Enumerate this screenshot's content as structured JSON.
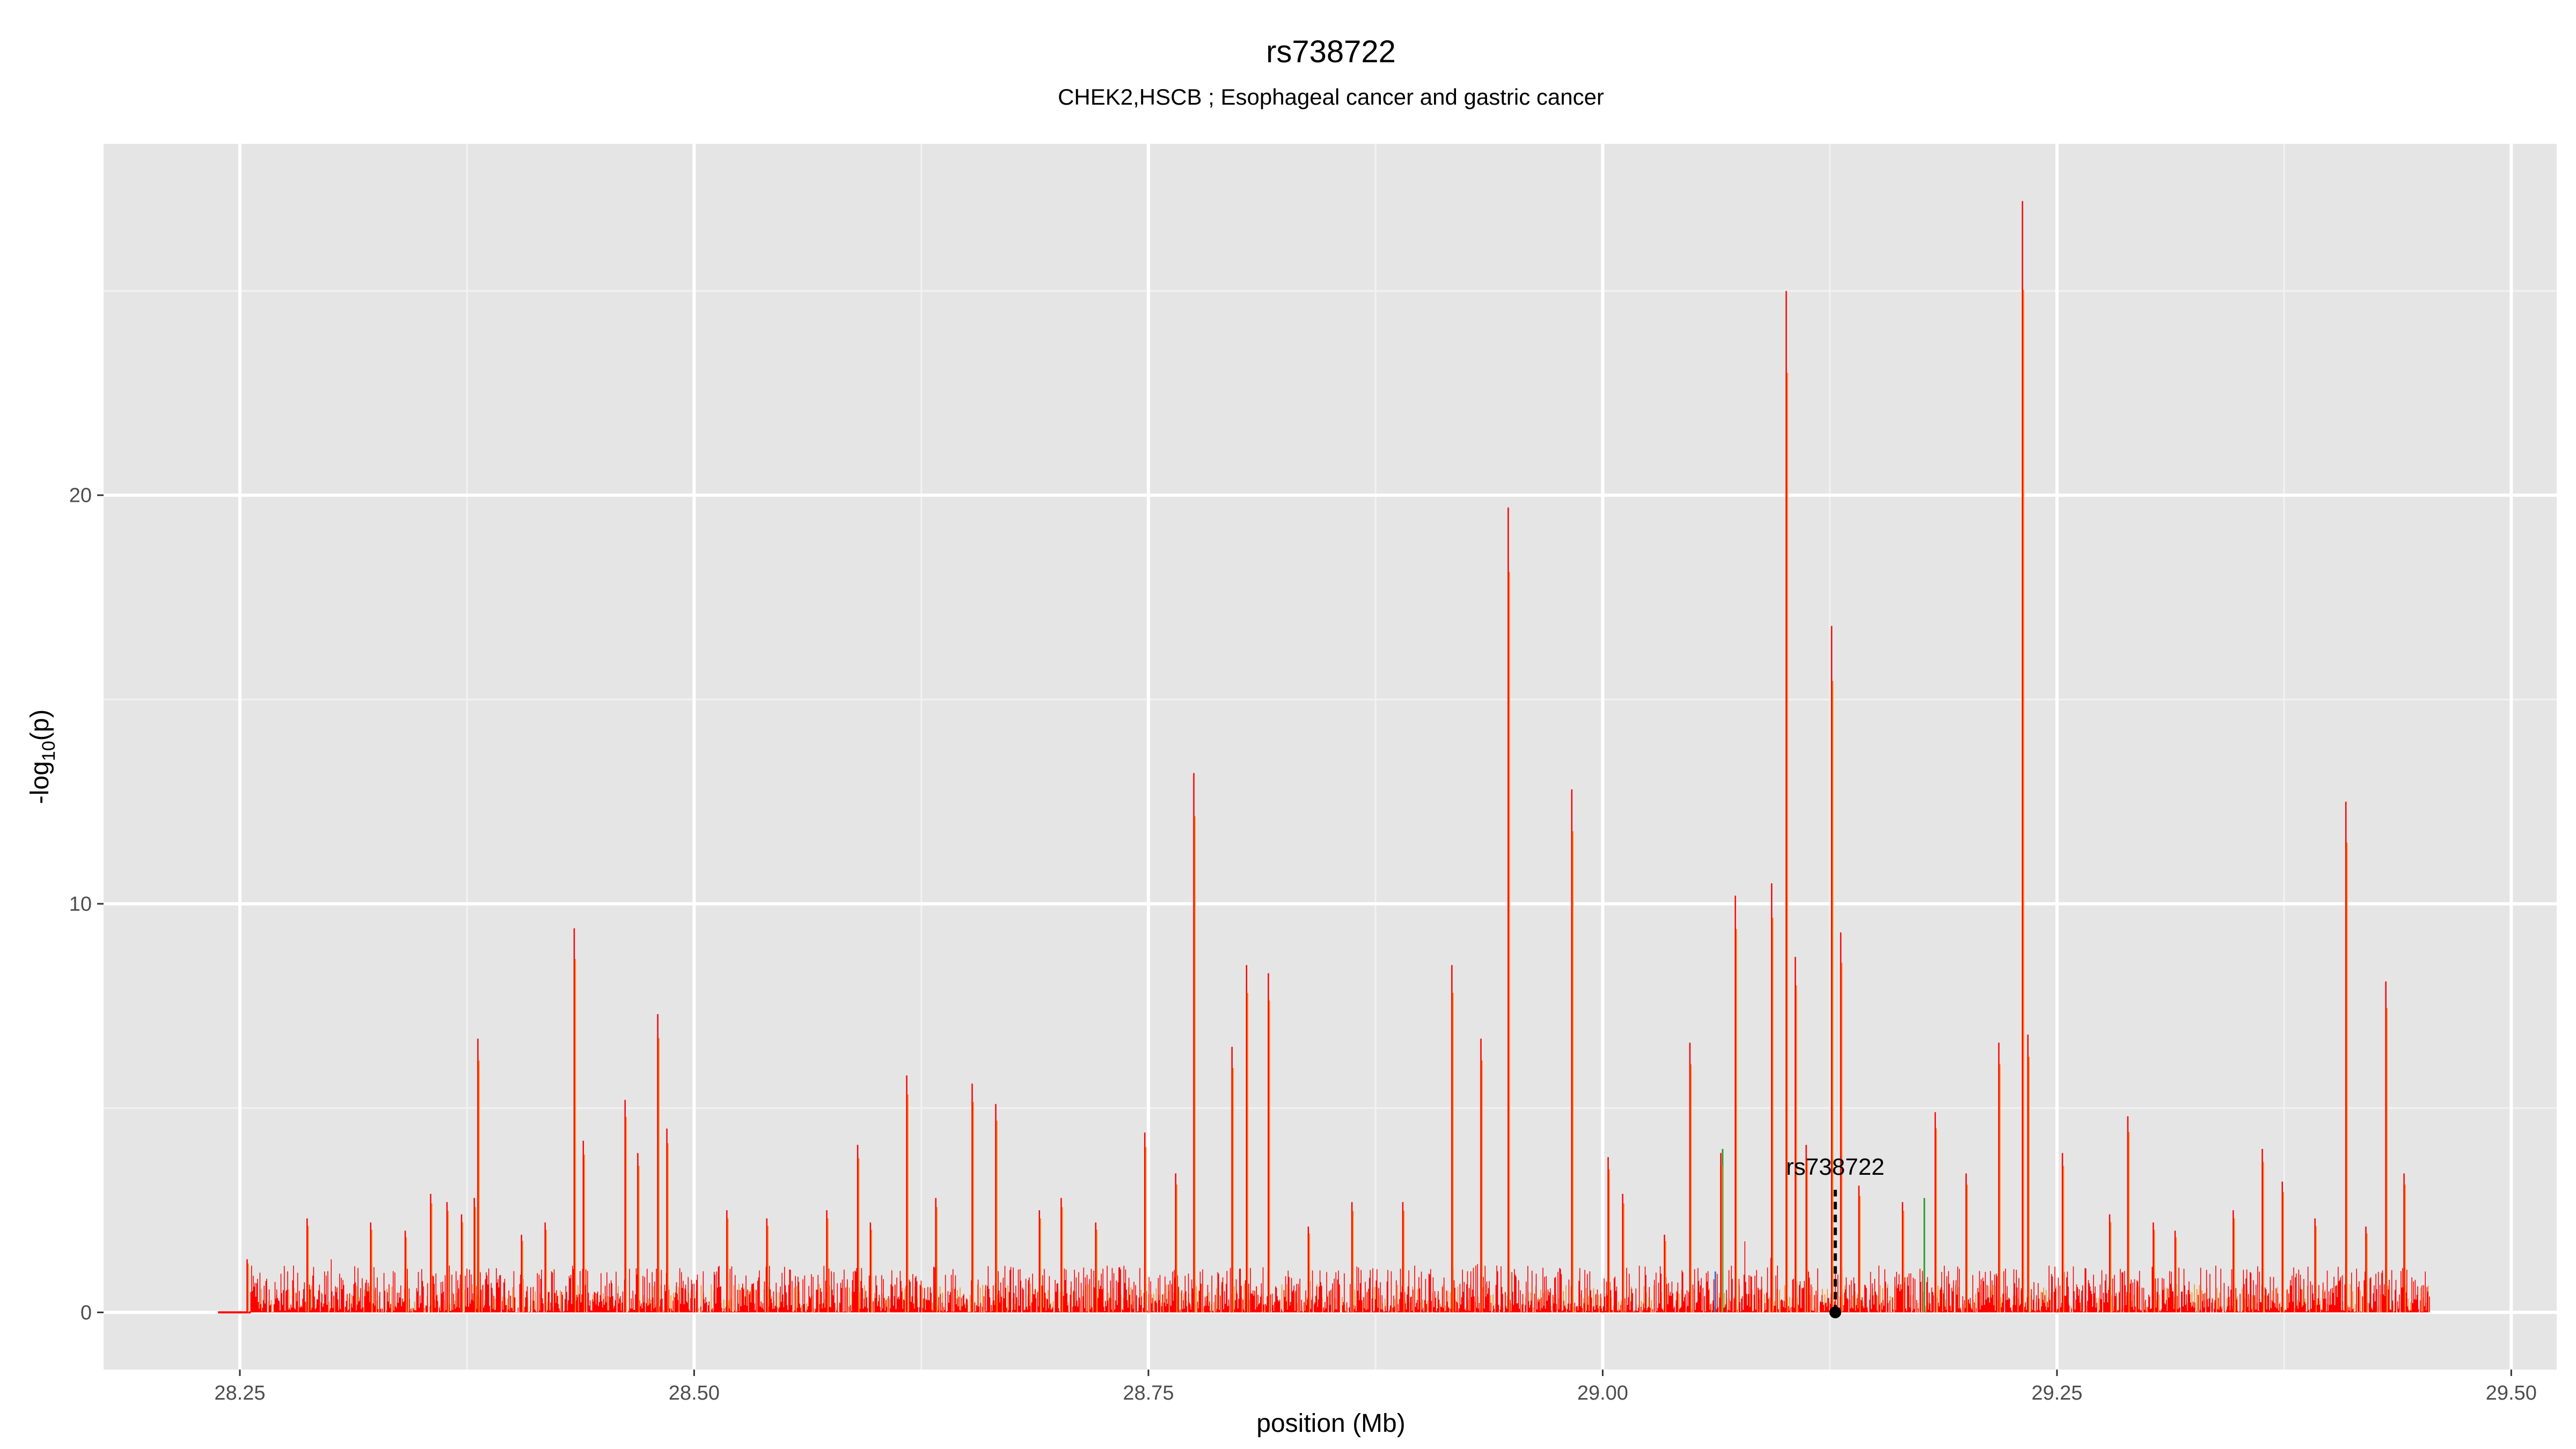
{
  "chart_data": {
    "type": "area",
    "title": "rs738722",
    "subtitle": "CHEK2,HSCB ; Esophageal cancer and gastric cancer",
    "xlabel": "position (Mb)",
    "ylabel": "-log10(p)",
    "xlim": [
      28.175,
      29.525
    ],
    "ylim": [
      -1.4,
      28.6
    ],
    "x_ticks": [
      28.25,
      28.5,
      28.75,
      29.0,
      29.25,
      29.5
    ],
    "x_tick_labels": [
      "28.25",
      "28.50",
      "28.75",
      "29.00",
      "29.25",
      "29.50"
    ],
    "y_ticks": [
      0,
      10,
      20
    ],
    "y_tick_labels": [
      "0",
      "10",
      "20"
    ],
    "grid": true,
    "background": "#e5e5e5",
    "colors": {
      "primary_series": "#ff0000",
      "secondary_series": "#ff8c1a",
      "tertiary_series": "#2ca02c",
      "quaternary_series": "#3b6fd1"
    },
    "series_range": {
      "x_start": 28.238,
      "x_flat_end": 28.256,
      "x_end": 29.455
    },
    "peaks": [
      {
        "x": 28.254,
        "y": 1.3
      },
      {
        "x": 28.287,
        "y": 2.3
      },
      {
        "x": 28.322,
        "y": 2.2
      },
      {
        "x": 28.341,
        "y": 2.0
      },
      {
        "x": 28.355,
        "y": 2.9
      },
      {
        "x": 28.364,
        "y": 2.7
      },
      {
        "x": 28.372,
        "y": 2.4
      },
      {
        "x": 28.379,
        "y": 2.8
      },
      {
        "x": 28.381,
        "y": 6.7
      },
      {
        "x": 28.405,
        "y": 1.9
      },
      {
        "x": 28.418,
        "y": 2.2
      },
      {
        "x": 28.434,
        "y": 9.4
      },
      {
        "x": 28.439,
        "y": 4.2
      },
      {
        "x": 28.462,
        "y": 5.2
      },
      {
        "x": 28.469,
        "y": 3.9
      },
      {
        "x": 28.48,
        "y": 7.3
      },
      {
        "x": 28.485,
        "y": 4.5
      },
      {
        "x": 28.518,
        "y": 2.5
      },
      {
        "x": 28.54,
        "y": 2.3
      },
      {
        "x": 28.573,
        "y": 2.5
      },
      {
        "x": 28.59,
        "y": 4.1
      },
      {
        "x": 28.597,
        "y": 2.2
      },
      {
        "x": 28.617,
        "y": 5.8
      },
      {
        "x": 28.633,
        "y": 2.8
      },
      {
        "x": 28.653,
        "y": 5.6
      },
      {
        "x": 28.666,
        "y": 5.1
      },
      {
        "x": 28.69,
        "y": 2.5
      },
      {
        "x": 28.702,
        "y": 2.8
      },
      {
        "x": 28.721,
        "y": 2.2
      },
      {
        "x": 28.748,
        "y": 4.4
      },
      {
        "x": 28.765,
        "y": 3.4
      },
      {
        "x": 28.775,
        "y": 13.2
      },
      {
        "x": 28.796,
        "y": 6.5
      },
      {
        "x": 28.804,
        "y": 8.5
      },
      {
        "x": 28.816,
        "y": 8.3
      },
      {
        "x": 28.838,
        "y": 2.1
      },
      {
        "x": 28.862,
        "y": 2.7
      },
      {
        "x": 28.89,
        "y": 2.7
      },
      {
        "x": 28.917,
        "y": 8.5
      },
      {
        "x": 28.933,
        "y": 6.7
      },
      {
        "x": 28.948,
        "y": 19.7
      },
      {
        "x": 28.983,
        "y": 12.8
      },
      {
        "x": 29.003,
        "y": 3.8
      },
      {
        "x": 29.011,
        "y": 2.9
      },
      {
        "x": 29.034,
        "y": 1.9
      },
      {
        "x": 29.048,
        "y": 6.6
      },
      {
        "x": 29.065,
        "y": 3.9
      },
      {
        "x": 29.073,
        "y": 10.2
      },
      {
        "x": 29.093,
        "y": 10.5
      },
      {
        "x": 29.101,
        "y": 25.0
      },
      {
        "x": 29.106,
        "y": 8.7
      },
      {
        "x": 29.112,
        "y": 4.1
      },
      {
        "x": 29.126,
        "y": 16.8
      },
      {
        "x": 29.131,
        "y": 9.3
      },
      {
        "x": 29.141,
        "y": 3.1
      },
      {
        "x": 29.165,
        "y": 2.7
      },
      {
        "x": 29.183,
        "y": 4.9
      },
      {
        "x": 29.2,
        "y": 3.4
      },
      {
        "x": 29.218,
        "y": 6.6
      },
      {
        "x": 29.231,
        "y": 27.2
      },
      {
        "x": 29.234,
        "y": 6.8
      },
      {
        "x": 29.253,
        "y": 3.9
      },
      {
        "x": 29.279,
        "y": 2.4
      },
      {
        "x": 29.289,
        "y": 4.8
      },
      {
        "x": 29.303,
        "y": 2.2
      },
      {
        "x": 29.315,
        "y": 2.0
      },
      {
        "x": 29.347,
        "y": 2.5
      },
      {
        "x": 29.363,
        "y": 4.0
      },
      {
        "x": 29.374,
        "y": 3.2
      },
      {
        "x": 29.392,
        "y": 2.3
      },
      {
        "x": 29.409,
        "y": 12.5
      },
      {
        "x": 29.42,
        "y": 2.1
      },
      {
        "x": 29.431,
        "y": 8.1
      },
      {
        "x": 29.441,
        "y": 3.4
      }
    ],
    "secondary_peaks": [
      {
        "x": 29.066,
        "y": 4.0
      },
      {
        "x": 29.177,
        "y": 2.8
      },
      {
        "x": 29.062,
        "y": 1.0
      }
    ],
    "annotation": {
      "label": "rs738722",
      "x": 29.128,
      "y": 0,
      "line_top_y": 3.0
    }
  }
}
